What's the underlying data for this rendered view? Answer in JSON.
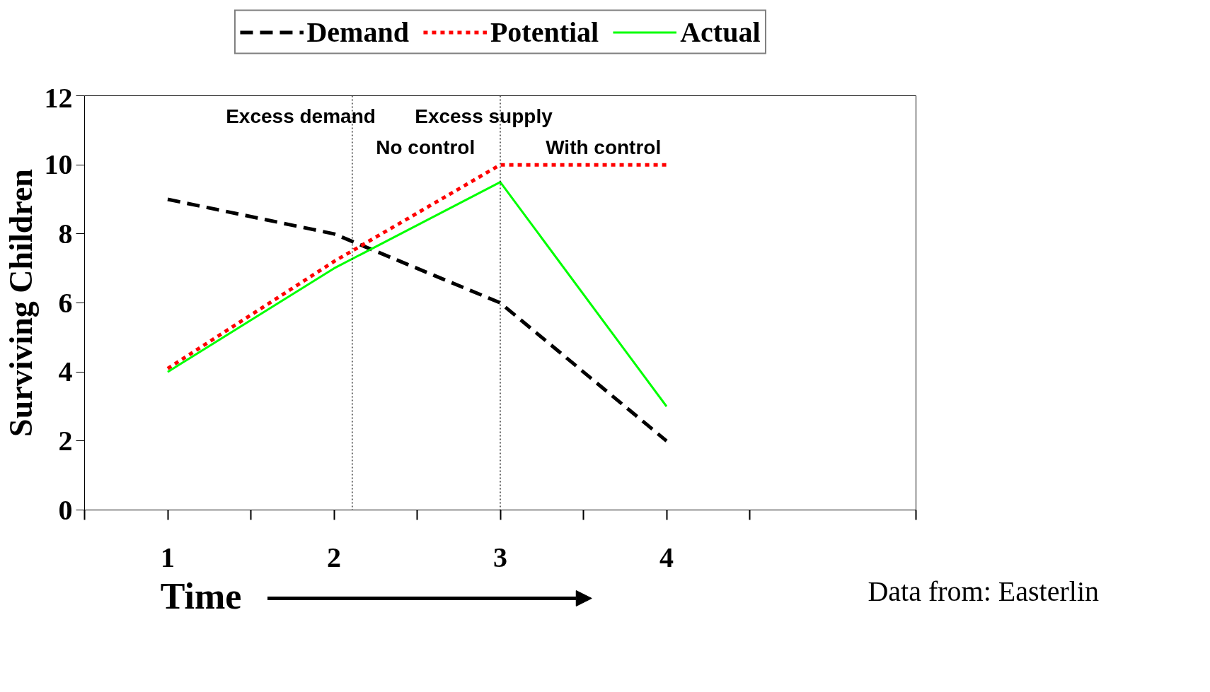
{
  "chart_data": {
    "type": "line",
    "ylabel": "Surviving Children",
    "xlabel": "Time",
    "x": [
      1,
      2,
      3,
      4
    ],
    "xlim": [
      0.5,
      5.5
    ],
    "xticks": [
      {
        "value": 0.5,
        "label": null
      },
      1,
      {
        "value": 1.5,
        "label": null
      },
      2,
      {
        "value": 2.5,
        "label": null
      },
      3,
      {
        "value": 3.5,
        "label": null
      },
      4,
      {
        "value": 4.5,
        "label": null
      },
      {
        "value": 5.5,
        "label": null
      }
    ],
    "ylim": [
      0,
      12
    ],
    "yticks": [
      0,
      2,
      4,
      6,
      8,
      10,
      12
    ],
    "series": [
      {
        "name": "Demand",
        "color": "#000000",
        "line_style": "dashed",
        "values": [
          9,
          8,
          6,
          2
        ]
      },
      {
        "name": "Potential",
        "color": "#ff0000",
        "line_style": "dotted",
        "values": [
          4.1,
          7.2,
          10,
          10
        ]
      },
      {
        "name": "Actual",
        "color": "#00ff00",
        "line_style": "solid",
        "values": [
          4,
          7,
          9.5,
          3
        ]
      }
    ],
    "ref_lines": [
      {
        "axis": "x",
        "value": 2.11,
        "color": "#000000",
        "line_style": "dotted"
      },
      {
        "axis": "x",
        "value": 3,
        "color": "#000000",
        "line_style": "dotted"
      }
    ],
    "annotations": [
      "Excess demand",
      "Excess supply",
      "No control",
      "With control",
      "Data from: Easterlin"
    ],
    "legend": "top",
    "grid": false,
    "marker": "none"
  }
}
